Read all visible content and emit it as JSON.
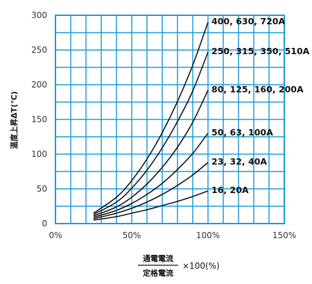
{
  "chart_data": {
    "type": "line",
    "xlabel": {
      "numerator": "通電電流",
      "denominator": "定格電流",
      "multiplier": "×100(%)"
    },
    "ylabel": "温度上昇ΔT(℃)",
    "xlim": [
      0,
      150
    ],
    "ylim": [
      0,
      300
    ],
    "x_ticks": [
      {
        "value": 0,
        "label": "0%"
      },
      {
        "value": 50,
        "label": "50%"
      },
      {
        "value": 100,
        "label": "100%"
      },
      {
        "value": 150,
        "label": "150%"
      }
    ],
    "y_ticks": [
      {
        "value": 0,
        "label": "0"
      },
      {
        "value": 50,
        "label": "50"
      },
      {
        "value": 100,
        "label": "100"
      },
      {
        "value": 150,
        "label": "150"
      },
      {
        "value": 200,
        "label": "200"
      },
      {
        "value": 250,
        "label": "250"
      },
      {
        "value": 300,
        "label": "300"
      }
    ],
    "grid": true,
    "grid_color": "#1a9bd7",
    "line_color": "#111111",
    "series": [
      {
        "name": "400, 630, 720A",
        "x": [
          25,
          40,
          50,
          60,
          70,
          80,
          90,
          100
        ],
        "y": [
          15,
          38,
          62,
          93,
          131,
          176,
          228,
          290
        ]
      },
      {
        "name": "250, 315, 350, 510A",
        "x": [
          25,
          40,
          50,
          60,
          70,
          80,
          90,
          100
        ],
        "y": [
          13,
          31,
          51,
          77,
          109,
          147,
          191,
          247
        ]
      },
      {
        "name": "80, 125, 160, 200A",
        "x": [
          25,
          40,
          50,
          60,
          70,
          80,
          90,
          100
        ],
        "y": [
          11,
          24,
          38,
          57,
          81,
          110,
          146,
          192
        ]
      },
      {
        "name": "50, 63, 100A",
        "x": [
          25,
          40,
          50,
          60,
          70,
          80,
          90,
          100
        ],
        "y": [
          9,
          19,
          29,
          42,
          58,
          78,
          101,
          130
        ]
      },
      {
        "name": "23, 32, 40A",
        "x": [
          25,
          40,
          50,
          60,
          70,
          80,
          90,
          100
        ],
        "y": [
          7,
          15,
          22,
          31,
          42,
          55,
          70,
          88
        ]
      },
      {
        "name": "16, 20A",
        "x": [
          25,
          40,
          50,
          60,
          70,
          80,
          90,
          100
        ],
        "y": [
          5,
          10,
          15,
          20,
          26,
          32,
          39,
          47
        ]
      }
    ]
  }
}
